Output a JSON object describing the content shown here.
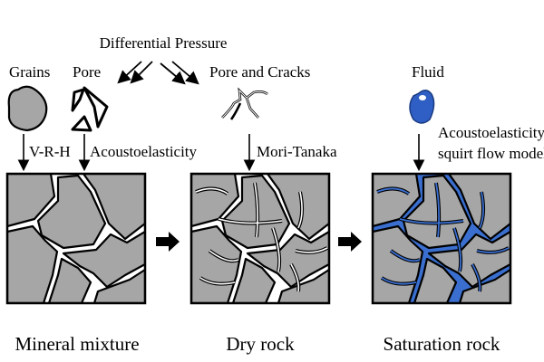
{
  "title": "Differential Pressure",
  "components": {
    "grains": "Grains",
    "pore": "Pore",
    "pore_cracks": "Pore and Cracks",
    "fluid": "Fluid"
  },
  "methods": {
    "vrh": "V-R-H",
    "acousto": "Acoustoelasticity",
    "mori": "Mori-Tanaka",
    "squirt_line1": "Acoustoelasticity-",
    "squirt_line2": "squirt flow model"
  },
  "stages": {
    "mineral": "Mineral mixture",
    "dry": "Dry rock",
    "saturation": "Saturation rock"
  },
  "colors": {
    "grain": "#a6a6a6",
    "fluid": "#3a6fd0"
  }
}
